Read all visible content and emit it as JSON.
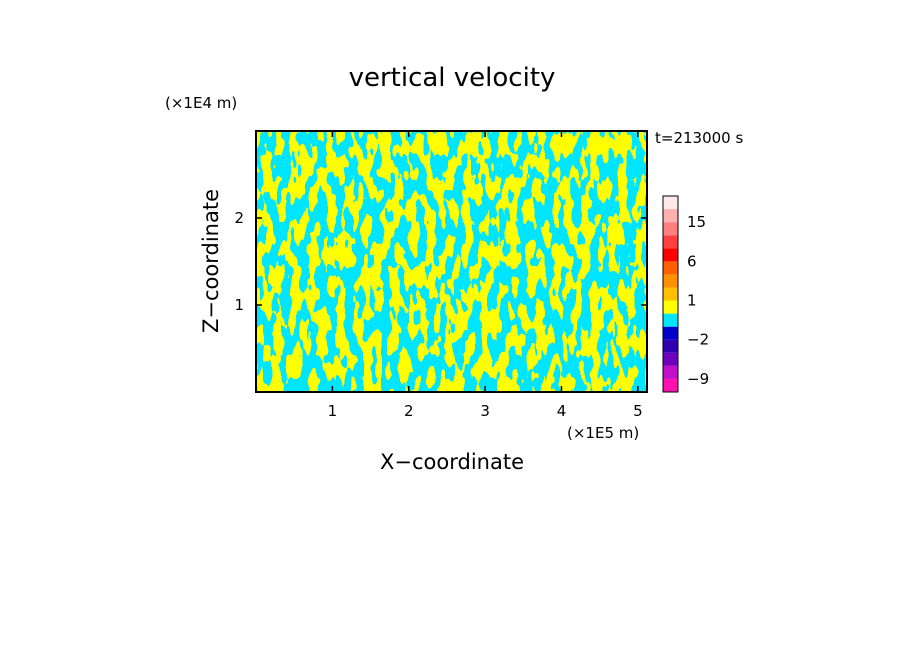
{
  "chart_data": {
    "type": "heatmap",
    "title": "vertical velocity",
    "time_label": "t=213000 s",
    "xlabel": "X−coordinate",
    "ylabel": "Z−coordinate",
    "x_unit": "(×1E5 m)",
    "y_unit": "(×1E4 m)",
    "xlim": [
      0,
      5.12
    ],
    "ylim": [
      0,
      3.0
    ],
    "x_ticks": [
      {
        "value": 1,
        "label": "1"
      },
      {
        "value": 2,
        "label": "2"
      },
      {
        "value": 3,
        "label": "3"
      },
      {
        "value": 4,
        "label": "4"
      },
      {
        "value": 5,
        "label": "5"
      }
    ],
    "y_ticks": [
      {
        "value": 1,
        "label": "1"
      },
      {
        "value": 2,
        "label": "2"
      }
    ],
    "field_colors": {
      "positive": "#ffff00",
      "negative": "#00e5ff"
    },
    "colorbar": {
      "levels": [
        -12,
        -9,
        -6,
        -4,
        -2,
        -1,
        0,
        1,
        2,
        4,
        6,
        9,
        12,
        15,
        18,
        24
      ],
      "colors": [
        "#ff10b0",
        "#c010c8",
        "#7000c0",
        "#3000b0",
        "#0000c8",
        "#00e5ff",
        "#ffff00",
        "#ffc000",
        "#ff9000",
        "#ff6000",
        "#ff0000",
        "#ff4040",
        "#ff8080",
        "#ffb0b0",
        "#ffe8e8"
      ],
      "labels": [
        {
          "value": 15,
          "label": "15"
        },
        {
          "value": 6,
          "label": "6"
        },
        {
          "value": 1,
          "label": "1"
        },
        {
          "value": -2,
          "label": "−2"
        },
        {
          "value": -9,
          "label": "−9"
        }
      ]
    }
  }
}
